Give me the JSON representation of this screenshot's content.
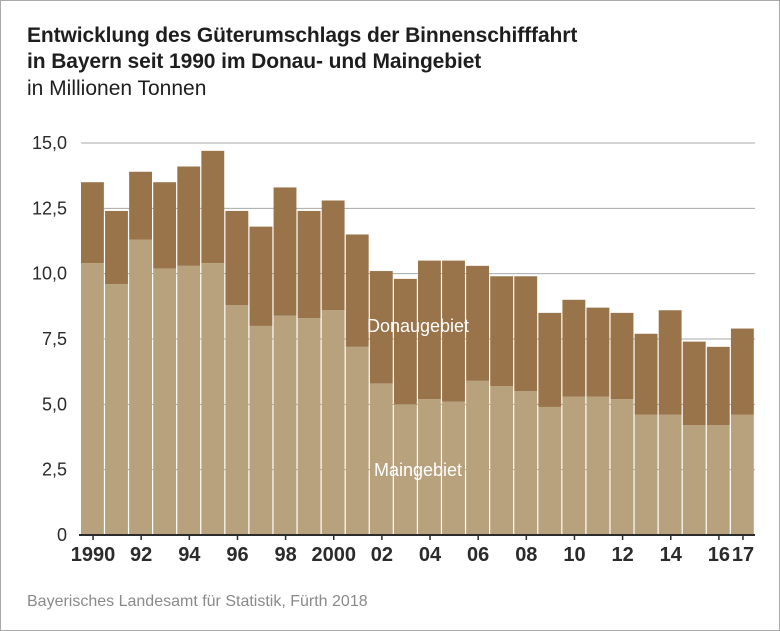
{
  "title_line1": "Entwicklung des Güterumschlags der Binnenschifffahrt",
  "title_line2": "in Bayern seit 1990 im Donau- und Maingebiet",
  "subtitle": "in Millionen Tonnen",
  "source": "Bayerisches Landesamt für Statistik, Fürth 2018",
  "colors": {
    "main": "#b8a27e",
    "donau": "#99744b",
    "grid": "#a8a8a8",
    "axis": "#2b2b2b",
    "label_text": "#ffffff"
  },
  "chart_data": {
    "type": "bar",
    "stacked": true,
    "categories": [
      "1990",
      "1991",
      "1992",
      "1993",
      "1994",
      "1995",
      "1996",
      "1997",
      "1998",
      "1999",
      "2000",
      "2001",
      "2002",
      "2003",
      "2004",
      "2005",
      "2006",
      "2007",
      "2008",
      "2009",
      "2010",
      "2011",
      "2012",
      "2013",
      "2014",
      "2015",
      "2016",
      "2017"
    ],
    "x_tick_labels": [
      "1990",
      "",
      "92",
      "",
      "94",
      "",
      "96",
      "",
      "98",
      "",
      "2000",
      "",
      "02",
      "",
      "04",
      "",
      "06",
      "",
      "08",
      "",
      "10",
      "",
      "12",
      "",
      "14",
      "",
      "16",
      "17"
    ],
    "y_tick_labels": [
      "0",
      "2,5",
      "5,0",
      "7,5",
      "10,0",
      "12,5",
      "15,0"
    ],
    "y_ticks": [
      0,
      2.5,
      5,
      7.5,
      10,
      12.5,
      15
    ],
    "ylim": [
      0,
      15
    ],
    "grid": true,
    "series": [
      {
        "name": "Maingebiet",
        "values": [
          10.4,
          9.6,
          11.3,
          10.2,
          10.3,
          10.4,
          8.8,
          8.0,
          8.4,
          8.3,
          8.6,
          7.2,
          5.8,
          5.0,
          5.2,
          5.1,
          5.9,
          5.7,
          5.5,
          4.9,
          5.3,
          5.3,
          5.2,
          4.6,
          4.6,
          4.2,
          4.2,
          4.6
        ]
      },
      {
        "name": "Donaugebiet",
        "values": [
          3.1,
          2.8,
          2.6,
          3.3,
          3.8,
          4.3,
          3.6,
          3.8,
          4.9,
          4.1,
          4.2,
          4.3,
          4.3,
          4.8,
          5.3,
          5.4,
          4.4,
          4.2,
          4.4,
          3.6,
          3.7,
          3.4,
          3.3,
          3.1,
          4.0,
          3.2,
          3.0,
          3.3
        ]
      }
    ],
    "series_labels": {
      "Maingebiet": "Maingebiet",
      "Donaugebiet": "Donaugebiet"
    }
  }
}
